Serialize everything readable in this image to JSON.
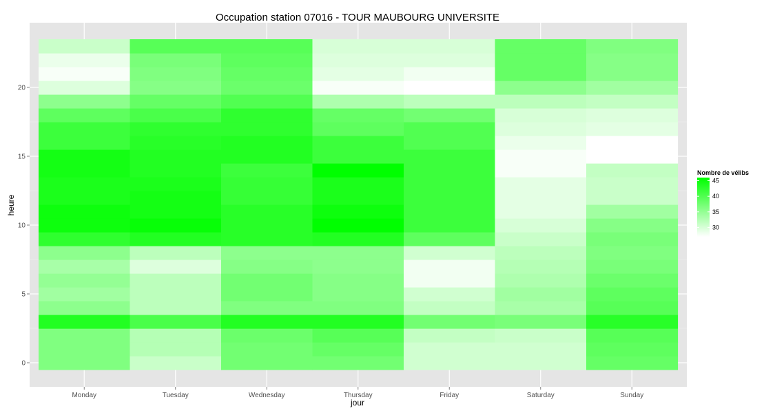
{
  "chart_data": {
    "type": "heatmap",
    "title": "Occupation station 07016 - TOUR MAUBOURG UNIVERSITE",
    "xlabel": "jour",
    "ylabel": "heure",
    "categories": [
      "Monday",
      "Tuesday",
      "Wednesday",
      "Thursday",
      "Friday",
      "Saturday",
      "Sunday"
    ],
    "y_ticks": [
      0,
      5,
      10,
      15,
      20
    ],
    "ylim": [
      -0.5,
      23.5
    ],
    "grid": true,
    "legend": {
      "title": "Nombre de vélibs",
      "ticks": [
        30,
        35,
        40,
        45
      ],
      "range": [
        27,
        46
      ],
      "low_color": "#ffffff",
      "high_color": "#00ff00",
      "placement": "right"
    },
    "hours": [
      0,
      1,
      2,
      3,
      4,
      5,
      6,
      7,
      8,
      9,
      10,
      11,
      12,
      13,
      14,
      15,
      16,
      17,
      18,
      19,
      20,
      21,
      22,
      23
    ],
    "values": [
      [
        36.5,
        36.5,
        36.5,
        43.5,
        35.5,
        34.0,
        35.0,
        33.5,
        35.5,
        42.5,
        45.0,
        45.0,
        44.0,
        44.0,
        44.5,
        44.5,
        41.5,
        41.5,
        39.0,
        35.5,
        29.5,
        27.5,
        28.5,
        31.0
      ],
      [
        31.0,
        32.5,
        32.5,
        40.5,
        32.0,
        32.0,
        32.0,
        29.5,
        32.0,
        43.5,
        45.5,
        44.5,
        44.5,
        44.0,
        43.5,
        43.5,
        43.0,
        42.5,
        40.5,
        38.5,
        36.0,
        36.5,
        37.0,
        39.5
      ],
      [
        37.5,
        37.5,
        38.0,
        43.5,
        36.5,
        37.5,
        37.5,
        36.0,
        35.5,
        43.0,
        43.0,
        43.0,
        42.0,
        42.0,
        41.5,
        43.5,
        43.5,
        42.5,
        42.5,
        40.0,
        38.0,
        38.5,
        39.0,
        39.5
      ],
      [
        37.5,
        38.5,
        39.5,
        43.5,
        36.5,
        36.0,
        36.0,
        35.5,
        35.5,
        43.5,
        46.0,
        45.0,
        44.0,
        44.0,
        46.0,
        41.5,
        41.5,
        39.0,
        38.5,
        33.0,
        27.5,
        29.0,
        29.5,
        30.0
      ],
      [
        30.5,
        30.5,
        31.5,
        37.5,
        31.5,
        30.5,
        28.0,
        28.0,
        30.5,
        39.0,
        41.5,
        41.5,
        41.5,
        41.5,
        41.5,
        41.5,
        40.0,
        40.0,
        37.5,
        32.0,
        27.0,
        28.0,
        29.5,
        30.0
      ],
      [
        30.5,
        30.5,
        31.0,
        37.0,
        33.5,
        34.0,
        33.0,
        32.5,
        32.0,
        31.0,
        30.0,
        29.0,
        29.0,
        29.0,
        27.5,
        27.5,
        28.5,
        29.5,
        30.0,
        32.0,
        35.5,
        38.5,
        38.5,
        38.5
      ],
      [
        38.5,
        39.0,
        39.5,
        43.0,
        39.5,
        39.0,
        38.0,
        37.0,
        36.5,
        37.0,
        36.0,
        34.0,
        31.0,
        31.0,
        31.5,
        26.5,
        27.0,
        29.0,
        29.5,
        31.5,
        34.0,
        36.0,
        36.0,
        36.5
      ]
    ]
  }
}
